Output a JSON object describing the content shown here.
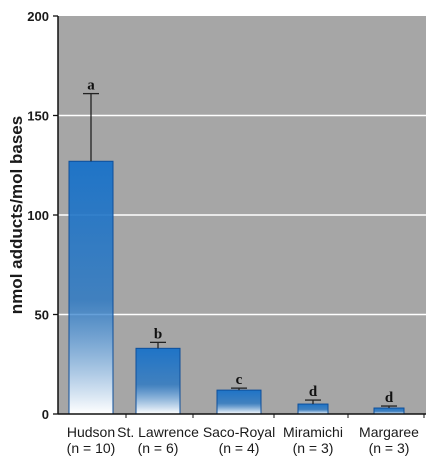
{
  "chart_data": {
    "type": "bar",
    "categories": [
      "Hudson",
      "St. Lawrence",
      "Saco-Royal",
      "Miramichi",
      "Margaree"
    ],
    "sample_sizes": [
      "(n = 10)",
      "(n = 6)",
      "(n = 4)",
      "(n = 3)",
      "(n = 3)"
    ],
    "values": [
      127,
      33,
      12,
      5,
      3
    ],
    "error_upper": [
      161,
      36,
      13,
      7,
      4
    ],
    "significance_labels": [
      "a",
      "b",
      "c",
      "d",
      "d"
    ],
    "ylabel": "nmol adducts/mol bases",
    "xlabel": "",
    "ylim": [
      0,
      200
    ],
    "yticks": [
      0,
      50,
      100,
      150,
      200
    ],
    "gridlines": [
      50,
      100,
      150
    ],
    "grid": true,
    "colors": {
      "plot_background": "#a6a6a6",
      "bar_top": "#1f74c7",
      "bar_bottom": "#ffffff",
      "bar_outline": "#0e4f9a",
      "gridline": "#ffffff",
      "axis": "#111111"
    }
  }
}
